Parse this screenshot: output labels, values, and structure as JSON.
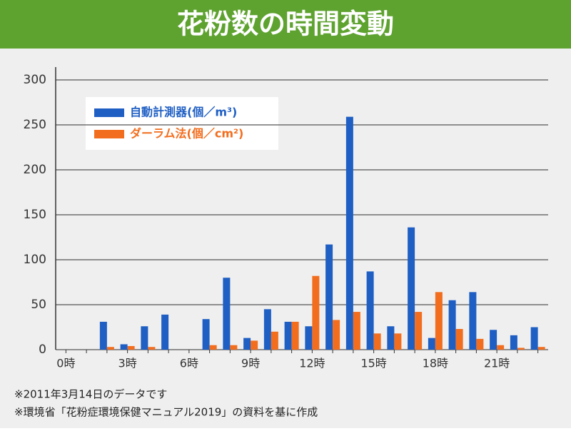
{
  "chart_data": {
    "type": "bar",
    "title": "花粉数の時間変動",
    "categories": [
      "0時",
      null,
      null,
      "3時",
      null,
      null,
      "6時",
      null,
      null,
      "9時",
      null,
      null,
      "12時",
      null,
      null,
      "15時",
      null,
      null,
      "18時",
      null,
      null,
      "21時",
      null,
      null
    ],
    "series": [
      {
        "name": "自動計測器(個／m³)",
        "color": "#1f5fc4",
        "values": [
          null,
          null,
          31,
          6,
          26,
          39,
          null,
          34,
          80,
          13,
          45,
          31,
          26,
          117,
          259,
          87,
          26,
          136,
          13,
          55,
          64,
          22,
          16,
          25
        ]
      },
      {
        "name": "ダーラム法(個／cm²)",
        "color": "#f26d1d",
        "values": [
          null,
          null,
          3,
          4,
          3,
          null,
          null,
          5,
          5,
          10,
          20,
          31,
          82,
          33,
          42,
          18,
          18,
          42,
          64,
          23,
          12,
          5,
          2,
          3
        ]
      }
    ],
    "ylim": [
      0,
      300
    ],
    "yticks": [
      0,
      50,
      100,
      150,
      200,
      250,
      300
    ],
    "grid": true,
    "annotations": [
      "※2011年3月14日のデータです",
      "※環境省「花粉症環境保健マニュアル2019」の資料を基に作成"
    ]
  }
}
